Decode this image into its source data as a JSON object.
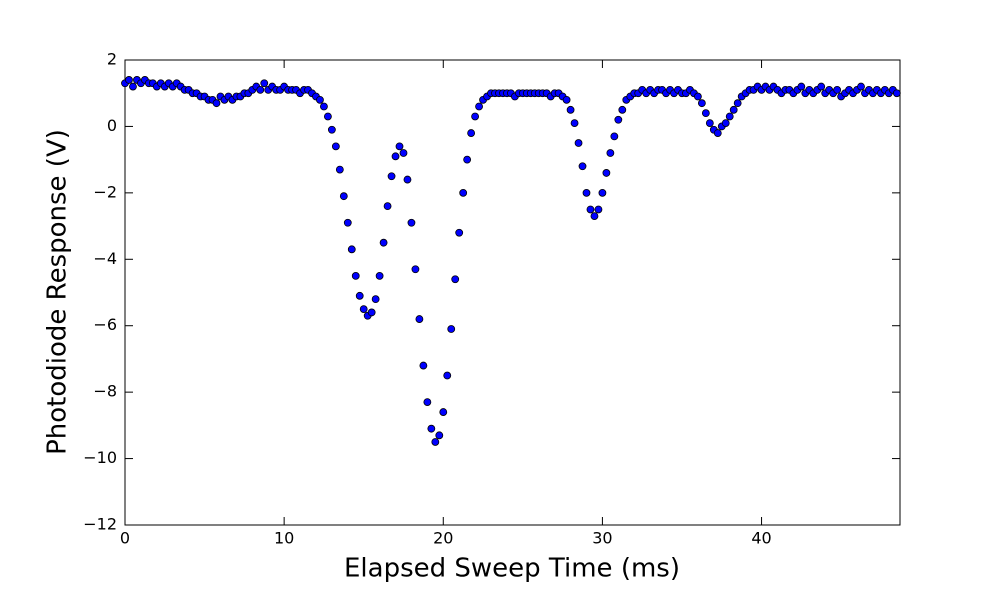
{
  "chart_data": {
    "type": "scatter",
    "xlabel": "Elapsed Sweep Time (ms)",
    "ylabel": "Photodiode Response (V)",
    "color": "#0000ff",
    "xlim": [
      0,
      48.7
    ],
    "ylim": [
      -12,
      2
    ],
    "xticks": [
      0,
      10,
      20,
      30,
      40
    ],
    "yticks": [
      {
        "value": -12,
        "label": "−12"
      },
      {
        "value": -10,
        "label": "−10"
      },
      {
        "value": -8,
        "label": "−8"
      },
      {
        "value": -6,
        "label": "−6"
      },
      {
        "value": -4,
        "label": "−4"
      },
      {
        "value": -2,
        "label": "−2"
      },
      0,
      2
    ],
    "x": [
      0,
      0.25,
      0.5,
      0.75,
      1,
      1.25,
      1.5,
      1.75,
      2,
      2.25,
      2.5,
      2.75,
      3,
      3.25,
      3.5,
      3.75,
      4,
      4.25,
      4.5,
      4.75,
      5,
      5.25,
      5.5,
      5.75,
      6,
      6.25,
      6.5,
      6.75,
      7,
      7.25,
      7.5,
      7.75,
      8,
      8.25,
      8.5,
      8.75,
      9,
      9.25,
      9.5,
      9.75,
      10,
      10.25,
      10.5,
      10.75,
      11,
      11.25,
      11.5,
      11.75,
      12,
      12.25,
      12.5,
      12.75,
      13,
      13.25,
      13.5,
      13.75,
      14,
      14.25,
      14.5,
      14.75,
      15,
      15.25,
      15.5,
      15.75,
      16,
      16.25,
      16.5,
      16.75,
      17,
      17.25,
      17.5,
      17.75,
      18,
      18.25,
      18.5,
      18.75,
      19,
      19.25,
      19.5,
      19.75,
      20,
      20.25,
      20.5,
      20.75,
      21,
      21.25,
      21.5,
      21.75,
      22,
      22.25,
      22.5,
      22.75,
      23,
      23.25,
      23.5,
      23.75,
      24,
      24.25,
      24.5,
      24.75,
      25,
      25.25,
      25.5,
      25.75,
      26,
      26.25,
      26.5,
      26.75,
      27,
      27.25,
      27.5,
      27.75,
      28,
      28.25,
      28.5,
      28.75,
      29,
      29.25,
      29.5,
      29.75,
      30,
      30.25,
      30.5,
      30.75,
      31,
      31.25,
      31.5,
      31.75,
      32,
      32.25,
      32.5,
      32.75,
      33,
      33.25,
      33.5,
      33.75,
      34,
      34.25,
      34.5,
      34.75,
      35,
      35.25,
      35.5,
      35.75,
      36,
      36.25,
      36.5,
      36.75,
      37,
      37.25,
      37.5,
      37.75,
      38,
      38.25,
      38.5,
      38.75,
      39,
      39.25,
      39.5,
      39.75,
      40,
      40.25,
      40.5,
      40.75,
      41,
      41.25,
      41.5,
      41.75,
      42,
      42.25,
      42.5,
      42.75,
      43,
      43.25,
      43.5,
      43.75,
      44,
      44.25,
      44.5,
      44.75,
      45,
      45.25,
      45.5,
      45.75,
      46,
      46.25,
      46.5,
      46.75,
      47,
      47.25,
      47.5,
      47.75,
      48,
      48.25,
      48.5
    ],
    "values": [
      1.3,
      1.4,
      1.2,
      1.4,
      1.3,
      1.4,
      1.3,
      1.3,
      1.2,
      1.3,
      1.2,
      1.3,
      1.2,
      1.3,
      1.2,
      1.1,
      1.1,
      1.0,
      1.0,
      0.9,
      0.9,
      0.8,
      0.8,
      0.7,
      0.9,
      0.8,
      0.9,
      0.8,
      0.9,
      0.9,
      1.0,
      1.0,
      1.1,
      1.2,
      1.1,
      1.3,
      1.1,
      1.2,
      1.1,
      1.1,
      1.2,
      1.1,
      1.1,
      1.1,
      1.0,
      1.1,
      1.1,
      1.0,
      0.9,
      0.8,
      0.6,
      0.3,
      -0.1,
      -0.6,
      -1.3,
      -2.1,
      -2.9,
      -3.7,
      -4.5,
      -5.1,
      -5.5,
      -5.7,
      -5.6,
      -5.2,
      -4.5,
      -3.5,
      -2.4,
      -1.5,
      -0.9,
      -0.6,
      -0.8,
      -1.6,
      -2.9,
      -4.3,
      -5.8,
      -7.2,
      -8.3,
      -9.1,
      -9.5,
      -9.3,
      -8.6,
      -7.5,
      -6.1,
      -4.6,
      -3.2,
      -2.0,
      -1.0,
      -0.2,
      0.3,
      0.6,
      0.8,
      0.9,
      1.0,
      1.0,
      1.0,
      1.0,
      1.0,
      1.0,
      0.9,
      1.0,
      1.0,
      1.0,
      1.0,
      1.0,
      1.0,
      1.0,
      1.0,
      0.9,
      1.0,
      1.0,
      0.9,
      0.8,
      0.5,
      0.1,
      -0.5,
      -1.2,
      -2.0,
      -2.5,
      -2.7,
      -2.5,
      -2.0,
      -1.4,
      -0.8,
      -0.3,
      0.2,
      0.5,
      0.8,
      0.9,
      1.0,
      1.0,
      1.1,
      1.0,
      1.1,
      1.0,
      1.1,
      1.1,
      1.0,
      1.1,
      1.0,
      1.1,
      1.0,
      1.0,
      1.1,
      1.0,
      0.9,
      0.7,
      0.4,
      0.1,
      -0.1,
      -0.2,
      0.0,
      0.1,
      0.3,
      0.5,
      0.7,
      0.9,
      1.0,
      1.1,
      1.1,
      1.2,
      1.1,
      1.2,
      1.1,
      1.2,
      1.1,
      1.0,
      1.1,
      1.1,
      1.0,
      1.1,
      1.2,
      1.0,
      1.1,
      1.0,
      1.1,
      1.2,
      1.0,
      1.1,
      1.0,
      1.1,
      0.9,
      1.0,
      1.1,
      1.0,
      1.1,
      1.2,
      1.0,
      1.1,
      1.0,
      1.1,
      1.0,
      1.1,
      1.0,
      1.1,
      1.0
    ]
  }
}
